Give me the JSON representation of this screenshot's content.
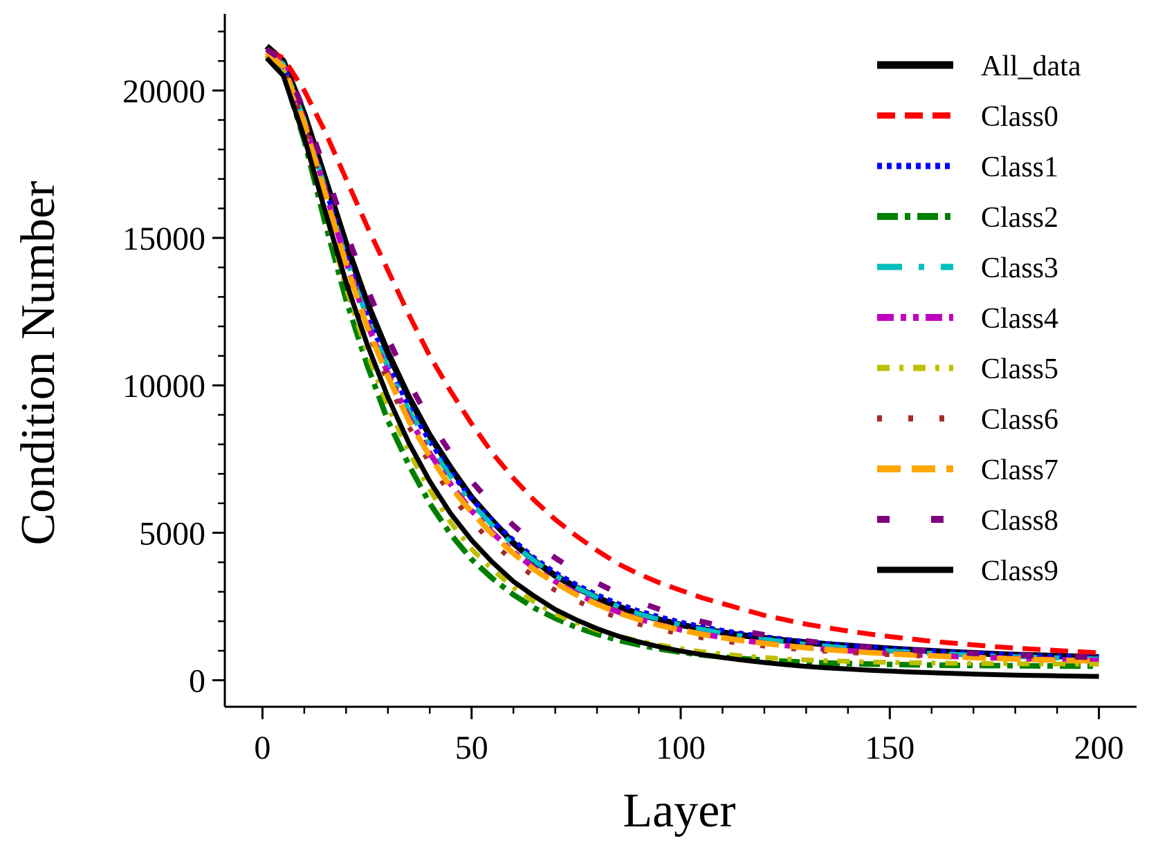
{
  "chart_data": {
    "type": "line",
    "title": "",
    "xlabel": "Layer",
    "ylabel": "Condition Number",
    "xlim": [
      -9,
      209
    ],
    "ylim": [
      -900,
      22600
    ],
    "xticks": [
      0,
      50,
      100,
      150,
      200
    ],
    "xtick_labels": [
      "0",
      "50",
      "100",
      "150",
      "200"
    ],
    "yticks": [
      0,
      5000,
      10000,
      15000,
      20000
    ],
    "ytick_labels": [
      "0",
      "5000",
      "10000",
      "15000",
      "20000"
    ],
    "x_minor_step": 10,
    "y_minor_step": 1000,
    "grid": false,
    "legend_position": "top-right",
    "x": [
      1,
      5,
      10,
      15,
      20,
      25,
      30,
      35,
      40,
      45,
      50,
      55,
      60,
      65,
      70,
      75,
      80,
      85,
      90,
      95,
      100,
      105,
      110,
      115,
      120,
      125,
      130,
      135,
      140,
      145,
      150,
      155,
      160,
      165,
      170,
      175,
      180,
      185,
      190,
      195,
      200
    ],
    "series": [
      {
        "name": "All_data",
        "color": "#000000",
        "dash": "solid",
        "width": 9,
        "values": [
          21500,
          21000,
          19200,
          17000,
          14800,
          12800,
          11100,
          9600,
          8300,
          7200,
          6200,
          5400,
          4650,
          4050,
          3550,
          3150,
          2800,
          2500,
          2250,
          2050,
          1880,
          1740,
          1620,
          1520,
          1430,
          1350,
          1280,
          1220,
          1170,
          1120,
          1070,
          1030,
          990,
          950,
          920,
          890,
          860,
          840,
          820,
          800,
          780
        ]
      },
      {
        "name": "Class0",
        "color": "#ff0000",
        "dash": "dashed",
        "width": 7,
        "values": [
          21400,
          21100,
          20000,
          18600,
          17000,
          15400,
          13900,
          12400,
          11000,
          9800,
          8700,
          7700,
          6850,
          6100,
          5450,
          4900,
          4400,
          3950,
          3600,
          3300,
          3050,
          2800,
          2600,
          2400,
          2200,
          2050,
          1900,
          1780,
          1670,
          1570,
          1480,
          1400,
          1320,
          1260,
          1200,
          1140,
          1090,
          1050,
          1010,
          970,
          930
        ]
      },
      {
        "name": "Class1",
        "color": "#0000ff",
        "dash": "dotted",
        "width": 7,
        "values": [
          21300,
          20900,
          19000,
          16700,
          14400,
          12400,
          10700,
          9300,
          8100,
          7050,
          6150,
          5400,
          4750,
          4150,
          3650,
          3250,
          2900,
          2600,
          2350,
          2150,
          1970,
          1820,
          1690,
          1580,
          1480,
          1390,
          1310,
          1240,
          1180,
          1130,
          1080,
          1040,
          1000,
          960,
          930,
          900,
          870,
          840,
          820,
          800,
          780
        ]
      },
      {
        "name": "Class2",
        "color": "#008000",
        "dash": "dashdot",
        "width": 8,
        "values": [
          21200,
          20600,
          18300,
          15500,
          12900,
          10700,
          8800,
          7300,
          6000,
          4950,
          4100,
          3450,
          2900,
          2450,
          2100,
          1800,
          1560,
          1360,
          1200,
          1060,
          950,
          860,
          790,
          730,
          680,
          640,
          610,
          585,
          565,
          550,
          535,
          525,
          515,
          505,
          500,
          495,
          490,
          485,
          482,
          480,
          478
        ]
      },
      {
        "name": "Class3",
        "color": "#00bfbf",
        "dash": "longdashdot",
        "width": 7,
        "values": [
          21300,
          20900,
          19000,
          16700,
          14300,
          12300,
          10600,
          9150,
          7950,
          6900,
          6000,
          5250,
          4600,
          4050,
          3550,
          3150,
          2800,
          2500,
          2250,
          2050,
          1880,
          1730,
          1600,
          1490,
          1390,
          1300,
          1220,
          1150,
          1090,
          1040,
          990,
          950,
          910,
          880,
          850,
          820,
          800,
          780,
          760,
          740,
          720
        ]
      },
      {
        "name": "Class4",
        "color": "#bf00bf",
        "dash": "dashdotdot",
        "width": 8,
        "values": [
          21300,
          20900,
          19000,
          16600,
          14200,
          12100,
          10400,
          8900,
          7700,
          6650,
          5750,
          5000,
          4350,
          3800,
          3350,
          2950,
          2600,
          2320,
          2080,
          1880,
          1710,
          1570,
          1450,
          1350,
          1260,
          1180,
          1110,
          1050,
          1000,
          950,
          910,
          870,
          840,
          810,
          780,
          760,
          740,
          720,
          700,
          680,
          670
        ]
      },
      {
        "name": "Class5",
        "color": "#bfbf00",
        "dash": "shortdashdot",
        "width": 7,
        "values": [
          21200,
          20700,
          18600,
          15900,
          13300,
          11100,
          9300,
          7750,
          6450,
          5350,
          4450,
          3750,
          3150,
          2650,
          2250,
          1950,
          1700,
          1500,
          1330,
          1190,
          1070,
          970,
          890,
          820,
          770,
          720,
          690,
          660,
          640,
          620,
          605,
          595,
          585,
          575,
          570,
          565,
          560,
          555,
          552,
          550,
          548
        ]
      },
      {
        "name": "Class6",
        "color": "#a52a2a",
        "dash": "sparsedot",
        "width": 7,
        "values": [
          21300,
          20800,
          18800,
          16400,
          14000,
          11900,
          10100,
          8600,
          7350,
          6300,
          5400,
          4650,
          4050,
          3500,
          3050,
          2700,
          2380,
          2120,
          1900,
          1720,
          1570,
          1440,
          1330,
          1240,
          1160,
          1090,
          1030,
          980,
          940,
          900,
          865,
          835,
          810,
          785,
          765,
          745,
          730,
          715,
          700,
          690,
          680
        ]
      },
      {
        "name": "Class7",
        "color": "#ffa500",
        "dash": "longdash",
        "width": 8,
        "values": [
          21300,
          20800,
          18900,
          16500,
          14100,
          12000,
          10300,
          8800,
          7600,
          6550,
          5700,
          4950,
          4300,
          3750,
          3300,
          2900,
          2570,
          2290,
          2060,
          1860,
          1700,
          1560,
          1440,
          1340,
          1250,
          1170,
          1100,
          1040,
          990,
          940,
          900,
          860,
          830,
          800,
          770,
          745,
          720,
          700,
          680,
          665,
          650
        ]
      },
      {
        "name": "Class8",
        "color": "#800080",
        "dash": "sparsedash",
        "width": 8,
        "values": [
          21400,
          21000,
          19300,
          17300,
          15200,
          13300,
          11600,
          10100,
          8800,
          7700,
          6750,
          5950,
          5250,
          4650,
          4150,
          3700,
          3300,
          2950,
          2650,
          2400,
          2180,
          1990,
          1820,
          1670,
          1540,
          1430,
          1330,
          1250,
          1180,
          1120,
          1070,
          1020,
          980,
          940,
          910,
          880,
          850,
          830,
          810,
          790,
          770
        ]
      },
      {
        "name": "Class9",
        "color": "#000000",
        "dash": "solid",
        "width": 7,
        "values": [
          21100,
          20500,
          18400,
          15900,
          13500,
          11400,
          9600,
          8050,
          6750,
          5650,
          4750,
          4000,
          3350,
          2850,
          2400,
          2050,
          1750,
          1500,
          1300,
          1130,
          990,
          870,
          770,
          680,
          600,
          530,
          470,
          420,
          380,
          340,
          310,
          280,
          255,
          230,
          210,
          190,
          175,
          160,
          150,
          140,
          130
        ]
      }
    ]
  }
}
